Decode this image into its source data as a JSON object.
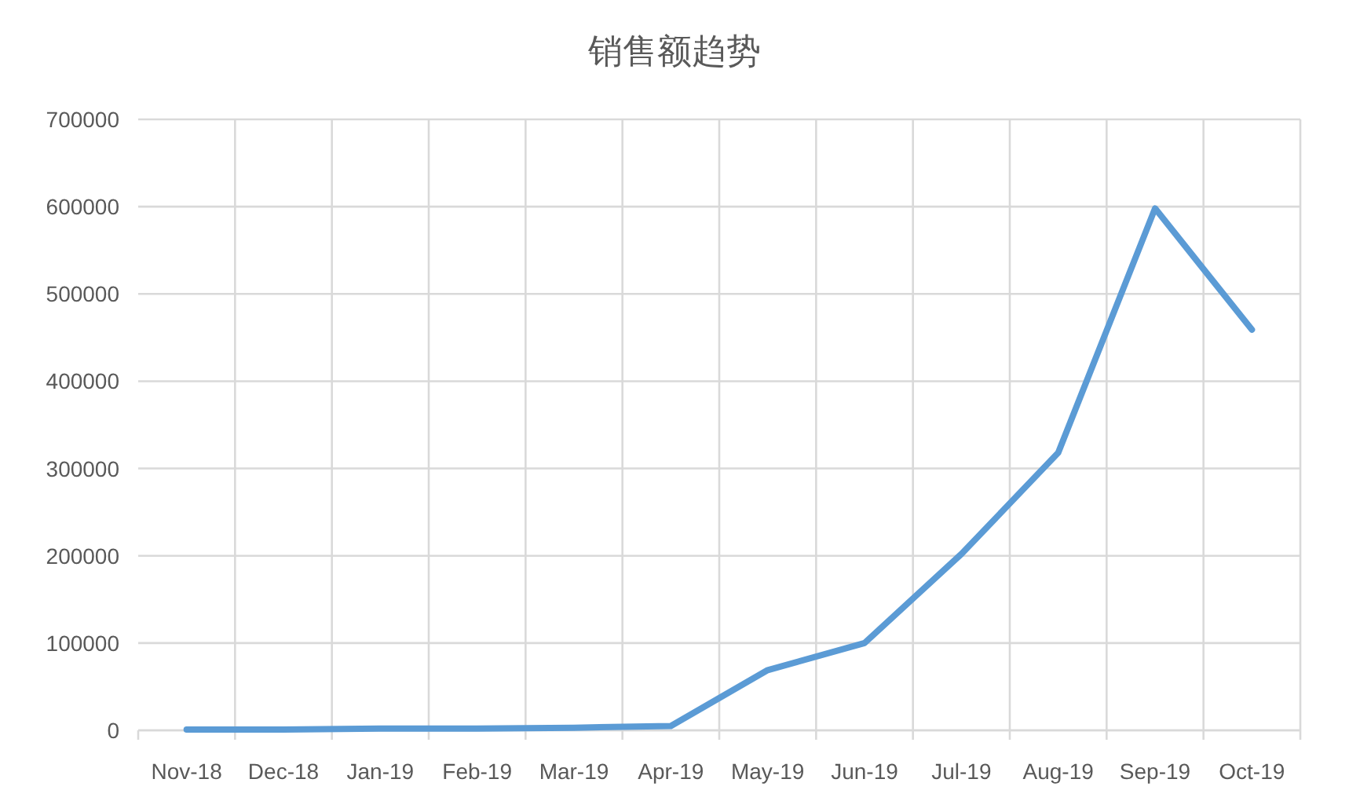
{
  "chart_data": {
    "type": "line",
    "title": "销售额趋势",
    "categories": [
      "Nov-18",
      "Dec-18",
      "Jan-19",
      "Feb-19",
      "Mar-19",
      "Apr-19",
      "May-19",
      "Jun-19",
      "Jul-19",
      "Aug-19",
      "Sep-19",
      "Oct-19"
    ],
    "series": [
      {
        "color": "#5b9bd5",
        "values": [
          1000,
          1000,
          2000,
          2000,
          3000,
          5000,
          69000,
          100000,
          202000,
          318000,
          598000,
          459000
        ]
      }
    ],
    "ylim": [
      0,
      700000
    ],
    "yticks": [
      0,
      100000,
      200000,
      300000,
      400000,
      500000,
      600000,
      700000
    ],
    "grid": true,
    "marker": "none",
    "line_style": "solid"
  }
}
